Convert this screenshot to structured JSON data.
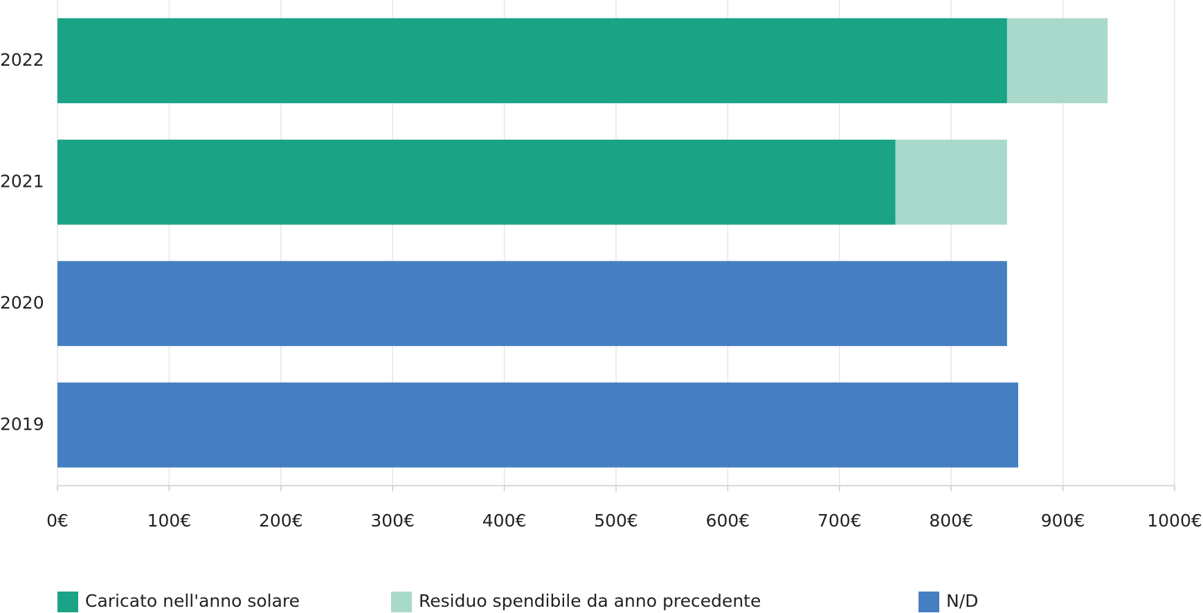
{
  "chart_data": {
    "type": "stacked-bar-horizontal",
    "categories": [
      "2022",
      "2021",
      "2020",
      "2019"
    ],
    "series": [
      {
        "name": "Caricato nell'anno solare",
        "color": "#1aa385",
        "values": [
          850,
          750,
          null,
          null
        ]
      },
      {
        "name": "Residuo spendibile da anno precedente",
        "color": "#a8d9ca",
        "values": [
          90,
          100,
          null,
          null
        ]
      },
      {
        "name": "N/D",
        "color": "#457fc1",
        "values": [
          null,
          null,
          850,
          860
        ]
      }
    ],
    "xlim": [
      0,
      1000
    ],
    "xticks": [
      {
        "value": 0,
        "label": "0€"
      },
      {
        "value": 100,
        "label": "100€"
      },
      {
        "value": 200,
        "label": "200€"
      },
      {
        "value": 300,
        "label": "300€"
      },
      {
        "value": 400,
        "label": "400€"
      },
      {
        "value": 500,
        "label": "500€"
      },
      {
        "value": 600,
        "label": "600€"
      },
      {
        "value": 700,
        "label": "700€"
      },
      {
        "value": 800,
        "label": "800€"
      },
      {
        "value": 900,
        "label": "900€"
      },
      {
        "value": 1000,
        "label": "1000€"
      }
    ],
    "grid": true,
    "legend": "bottom"
  }
}
